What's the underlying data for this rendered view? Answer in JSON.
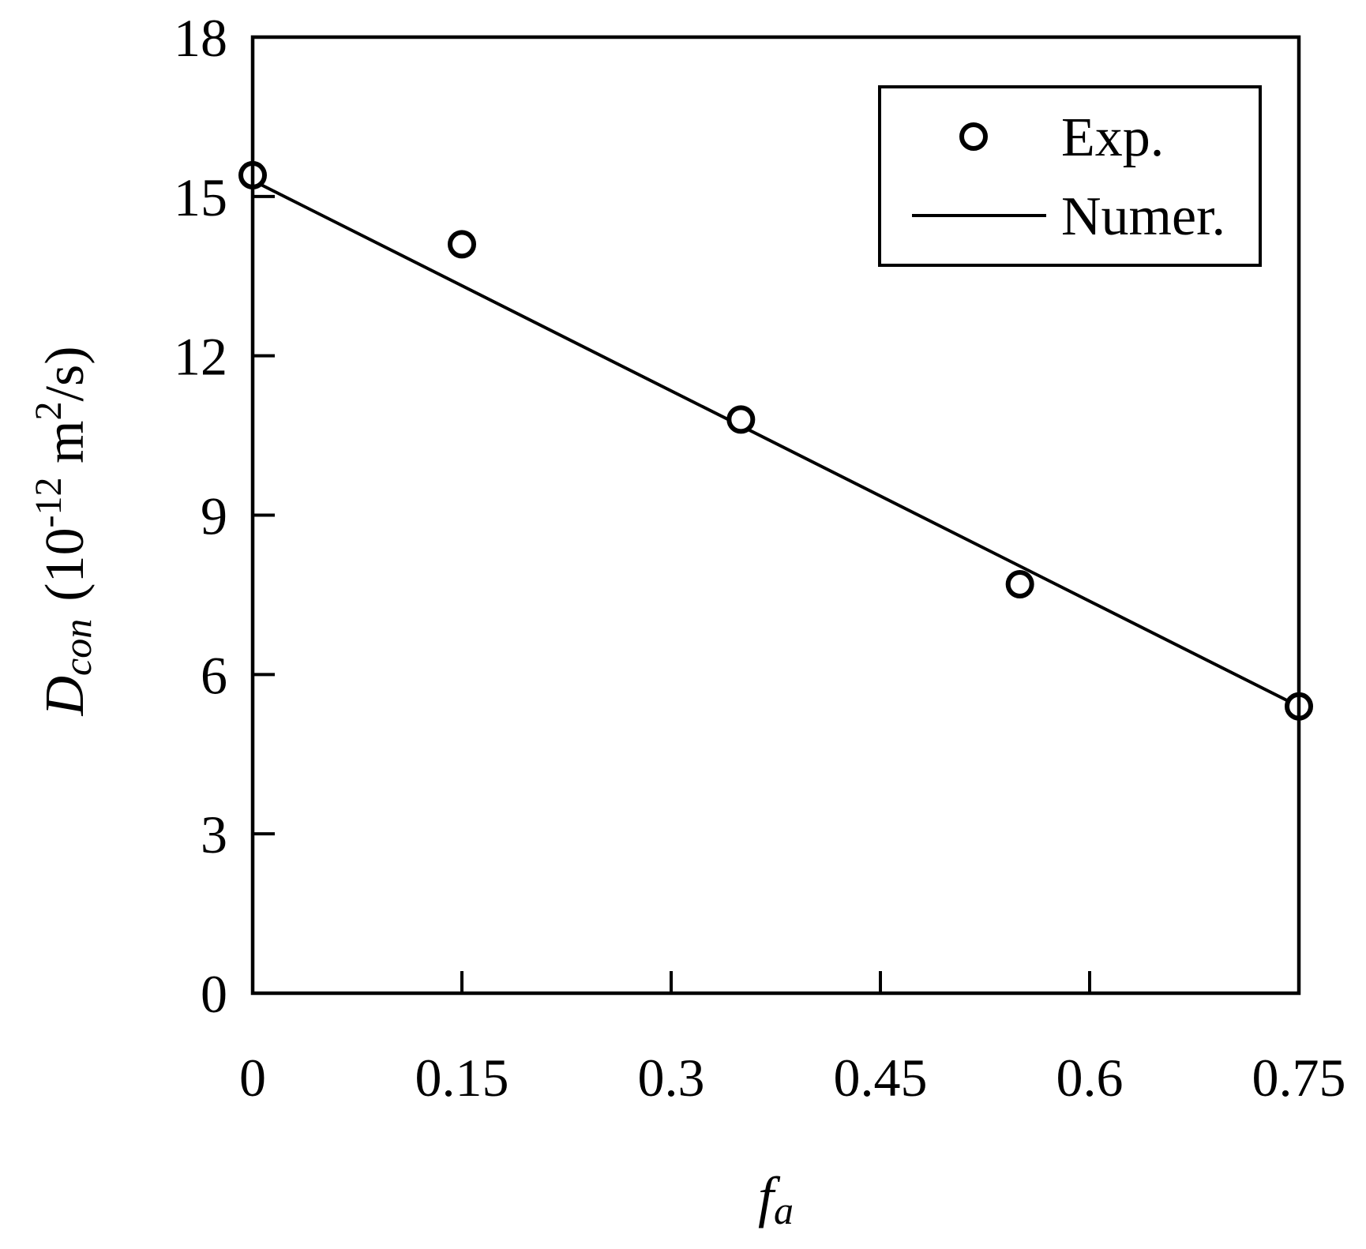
{
  "chart_data": {
    "type": "scatter",
    "xlabel": {
      "symbol": "f",
      "subscript": "a"
    },
    "ylabel": {
      "symbol": "D",
      "subscript": "con",
      "units_prefix": "(10",
      "units_exponent": "-12",
      "units_middle": " m",
      "units_exponent2": "2",
      "units_suffix": "/s)"
    },
    "xlim": [
      0,
      0.75
    ],
    "ylim": [
      0,
      18
    ],
    "x_ticks": [
      0,
      0.15,
      0.3,
      0.45,
      0.6,
      0.75
    ],
    "x_tick_labels": [
      "0",
      "0.15",
      "0.3",
      "0.45",
      "0.6",
      "0.75"
    ],
    "y_ticks": [
      0,
      3,
      6,
      9,
      12,
      15,
      18
    ],
    "y_tick_labels": [
      "0",
      "3",
      "6",
      "9",
      "12",
      "15",
      "18"
    ],
    "grid": false,
    "legend_position": "top-right",
    "series": [
      {
        "name": "Exp.",
        "kind": "markers",
        "marker": "open-circle",
        "points": [
          {
            "x": 0,
            "y": 15.4
          },
          {
            "x": 0.15,
            "y": 14.1
          },
          {
            "x": 0.35,
            "y": 10.8
          },
          {
            "x": 0.55,
            "y": 7.7
          },
          {
            "x": 0.75,
            "y": 5.4
          }
        ]
      },
      {
        "name": "Numer.",
        "kind": "line",
        "points": [
          {
            "x": 0,
            "y": 15.3
          },
          {
            "x": 0.75,
            "y": 5.4
          }
        ]
      }
    ]
  }
}
